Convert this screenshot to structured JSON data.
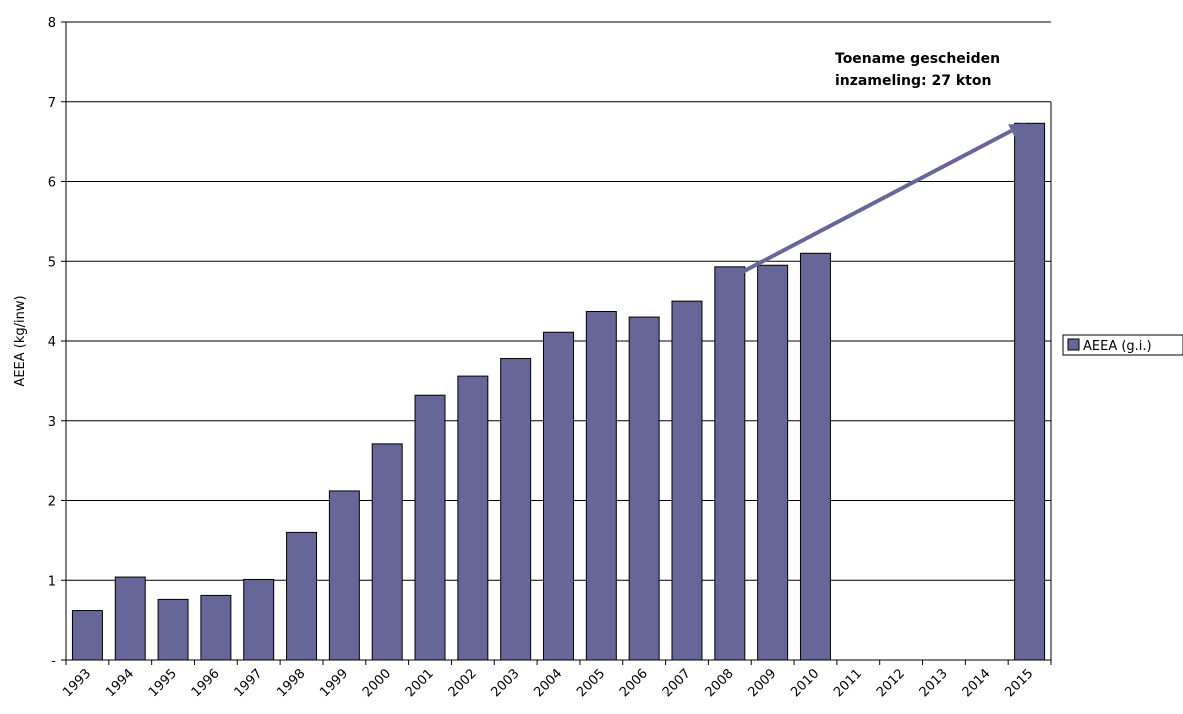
{
  "chart_data": {
    "type": "bar",
    "categories": [
      "1993",
      "1994",
      "1995",
      "1996",
      "1997",
      "1998",
      "1999",
      "2000",
      "2001",
      "2002",
      "2003",
      "2004",
      "2005",
      "2006",
      "2007",
      "2008",
      "2009",
      "2010",
      "2011",
      "2012",
      "2013",
      "2014",
      "2015"
    ],
    "series": [
      {
        "name": "AEEA (g.i.)",
        "color": "#666699",
        "values": [
          0.62,
          1.04,
          0.76,
          0.81,
          1.01,
          1.6,
          2.12,
          2.71,
          3.32,
          3.56,
          3.78,
          4.11,
          4.37,
          4.3,
          4.5,
          4.93,
          4.95,
          5.1,
          null,
          null,
          null,
          null,
          6.73
        ]
      }
    ],
    "ylabel": "AEEA (kg/inw)",
    "xlabel": "",
    "ylim": [
      0,
      8
    ],
    "yticks": [
      0,
      1,
      2,
      3,
      4,
      5,
      6,
      7,
      8
    ],
    "ytick_labels": [
      "-",
      "1",
      "2",
      "3",
      "4",
      "5",
      "6",
      "7",
      "8"
    ],
    "grid": true,
    "legend": "right",
    "annotation": {
      "lines": [
        "Toename gescheiden",
        "inzameling: 27 kton"
      ],
      "arrow_from": {
        "category": "2008",
        "value": 4.93
      },
      "arrow_to": {
        "category": "2015",
        "value": 6.73
      },
      "arrow_color": "#666699"
    }
  }
}
